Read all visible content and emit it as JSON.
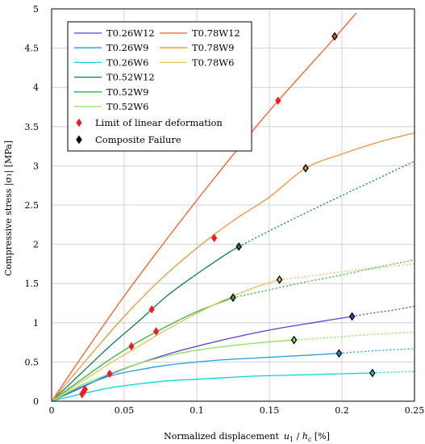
{
  "chart_data": {
    "type": "line",
    "xlabel_text": "Normalized displacement",
    "xlabel_var": "u",
    "xlabel_sub1": "1",
    "xlabel_sep": " / ",
    "xlabel_var2": "h",
    "xlabel_sub2": "c",
    "xlabel_unit": " [%]",
    "ylabel": "Compressive stress |σ₁| [MPa]",
    "xlim": [
      0,
      0.25
    ],
    "ylim": [
      0,
      5
    ],
    "x_ticks": [
      0,
      0.05,
      0.1,
      0.15,
      0.2,
      0.25
    ],
    "x_tick_labels": [
      "0",
      "0.05",
      "0.1",
      "0.15",
      "0.2",
      "0.25"
    ],
    "y_ticks": [
      0,
      0.5,
      1,
      1.5,
      2,
      2.5,
      3,
      3.5,
      4,
      4.5,
      5
    ],
    "y_tick_labels": [
      "0",
      "0.5",
      "1",
      "1.5",
      "2",
      "2.5",
      "3",
      "3.5",
      "4",
      "4.5",
      "5"
    ],
    "grid": true,
    "legend_position": "top-left",
    "series": [
      {
        "name": "T0.26W12",
        "color": "#5a3fd6",
        "x": [
          0,
          0.02,
          0.04,
          0.06,
          0.08,
          0.1,
          0.12,
          0.14,
          0.16,
          0.18,
          0.207
        ],
        "y": [
          0,
          0.17,
          0.34,
          0.48,
          0.6,
          0.7,
          0.79,
          0.87,
          0.94,
          1.0,
          1.08
        ],
        "dotted_x": [
          0.207,
          0.22,
          0.235,
          0.25
        ],
        "dotted_y": [
          1.08,
          1.12,
          1.16,
          1.21
        ],
        "limit": [
          0.023,
          0.15
        ],
        "failure": [
          0.207,
          1.08
        ]
      },
      {
        "name": "T0.26W9",
        "color": "#1da1e0",
        "x": [
          0,
          0.02,
          0.04,
          0.06,
          0.08,
          0.1,
          0.12,
          0.14,
          0.16,
          0.18,
          0.198
        ],
        "y": [
          0,
          0.18,
          0.32,
          0.4,
          0.46,
          0.5,
          0.53,
          0.55,
          0.57,
          0.59,
          0.61
        ],
        "dotted_x": [
          0.198,
          0.22,
          0.25
        ],
        "dotted_y": [
          0.61,
          0.64,
          0.67
        ],
        "limit": [
          0.022,
          0.12
        ],
        "failure": [
          0.198,
          0.61
        ]
      },
      {
        "name": "T0.26W6",
        "color": "#00d8d8",
        "x": [
          0,
          0.02,
          0.04,
          0.06,
          0.08,
          0.1,
          0.12,
          0.14,
          0.16,
          0.18,
          0.2,
          0.221
        ],
        "y": [
          0,
          0.09,
          0.17,
          0.22,
          0.26,
          0.28,
          0.3,
          0.32,
          0.33,
          0.34,
          0.35,
          0.36
        ],
        "dotted_x": [
          0.221,
          0.235,
          0.25
        ],
        "dotted_y": [
          0.36,
          0.37,
          0.38
        ],
        "limit": [
          0.021,
          0.09
        ],
        "failure": [
          0.221,
          0.36
        ]
      },
      {
        "name": "T0.52W12",
        "color": "#157a5e",
        "x": [
          0,
          0.02,
          0.04,
          0.06,
          0.08,
          0.1,
          0.12,
          0.129
        ],
        "y": [
          0,
          0.35,
          0.7,
          1.02,
          1.35,
          1.62,
          1.87,
          1.97
        ],
        "dotted_x": [
          0.129,
          0.15,
          0.175,
          0.2,
          0.225,
          0.25
        ],
        "dotted_y": [
          1.97,
          2.17,
          2.4,
          2.62,
          2.84,
          3.06
        ],
        "limit": [
          0.069,
          1.17
        ],
        "failure": [
          0.129,
          1.97
        ]
      },
      {
        "name": "T0.52W9",
        "color": "#2ab83a",
        "x": [
          0,
          0.02,
          0.04,
          0.06,
          0.08,
          0.1,
          0.125
        ],
        "y": [
          0,
          0.27,
          0.53,
          0.76,
          0.96,
          1.14,
          1.32
        ],
        "dotted_x": [
          0.125,
          0.15,
          0.175,
          0.2,
          0.225,
          0.25
        ],
        "dotted_y": [
          1.32,
          1.42,
          1.52,
          1.61,
          1.71,
          1.8
        ],
        "limit": [
          0.055,
          0.7
        ],
        "failure": [
          0.125,
          1.32
        ]
      },
      {
        "name": "T0.52W6",
        "color": "#8fe25a",
        "x": [
          0,
          0.02,
          0.04,
          0.06,
          0.08,
          0.1,
          0.12,
          0.14,
          0.167
        ],
        "y": [
          0,
          0.2,
          0.35,
          0.48,
          0.58,
          0.65,
          0.7,
          0.74,
          0.78
        ],
        "dotted_x": [
          0.167,
          0.19,
          0.22,
          0.25
        ],
        "dotted_y": [
          0.78,
          0.81,
          0.85,
          0.88
        ],
        "limit": [
          0.04,
          0.35
        ],
        "failure": [
          0.167,
          0.78
        ]
      },
      {
        "name": "T0.78W12",
        "color": "#ee5f2a",
        "x": [
          0,
          0.025,
          0.05,
          0.075,
          0.1,
          0.125,
          0.15,
          0.175,
          0.195,
          0.21
        ],
        "y": [
          0,
          0.68,
          1.34,
          1.96,
          2.56,
          3.14,
          3.7,
          4.22,
          4.63,
          4.95
        ],
        "dotted_x": [],
        "dotted_y": [],
        "limit": [
          0.156,
          3.83
        ],
        "failure": [
          0.195,
          4.65
        ]
      },
      {
        "name": "T0.78W9",
        "color": "#e8953a",
        "x": [
          0,
          0.025,
          0.05,
          0.075,
          0.1,
          0.125,
          0.15,
          0.175,
          0.2,
          0.225,
          0.25
        ],
        "y": [
          0,
          0.55,
          1.08,
          1.55,
          1.95,
          2.3,
          2.6,
          2.97,
          3.15,
          3.3,
          3.42
        ],
        "dotted_x": [],
        "dotted_y": [],
        "limit": [
          0.112,
          2.08
        ],
        "failure": [
          0.175,
          2.97
        ]
      },
      {
        "name": "T0.78W6",
        "color": "#e8c05a",
        "x": [
          0,
          0.02,
          0.04,
          0.06,
          0.08,
          0.1,
          0.12,
          0.14,
          0.157
        ],
        "y": [
          0,
          0.24,
          0.48,
          0.7,
          0.92,
          1.12,
          1.3,
          1.45,
          1.55
        ],
        "dotted_x": [
          0.157,
          0.18,
          0.2,
          0.225,
          0.25
        ],
        "dotted_y": [
          1.55,
          1.6,
          1.65,
          1.7,
          1.75
        ],
        "limit": [
          0.072,
          0.89
        ],
        "failure": [
          0.157,
          1.55
        ]
      }
    ],
    "markers": [
      {
        "name": "Limit of linear deformation",
        "shape": "diamond",
        "color": "#ee1c24"
      },
      {
        "name": "Composite Failure",
        "shape": "diamond",
        "color": "#000000"
      }
    ]
  }
}
